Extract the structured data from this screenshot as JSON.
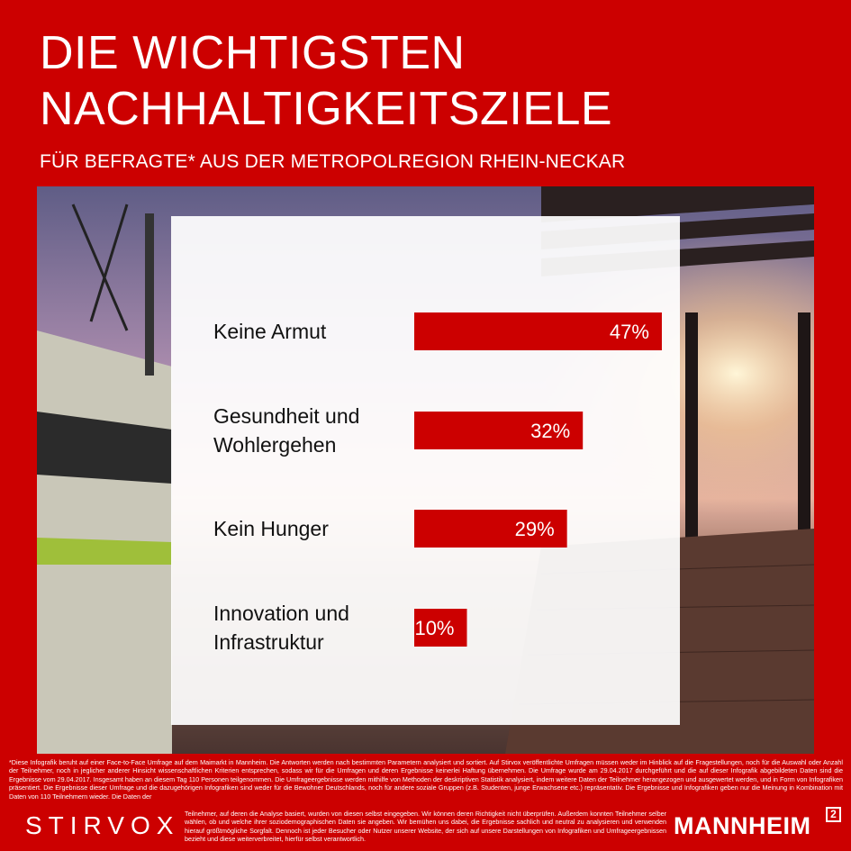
{
  "header": {
    "title_line1": "DIE WICHTIGSTEN",
    "title_line2": "NACHHALTIGKEITSZIELE",
    "subtitle": "FÜR BEFRAGTE* AUS DER METROPOLREGION RHEIN-NECKAR"
  },
  "colors": {
    "background": "#cc0000",
    "bar": "#cc0000",
    "panel": "#ffffff"
  },
  "chart_data": {
    "type": "bar",
    "orientation": "horizontal",
    "categories": [
      [
        "Keine Armut"
      ],
      [
        "Gesundheit und",
        "Wohlergehen"
      ],
      [
        "Kein Hunger"
      ],
      [
        "Innovation und",
        "Infrastruktur"
      ]
    ],
    "values": [
      47,
      32,
      29,
      10
    ],
    "value_labels": [
      "47%",
      "32%",
      "29%",
      "10%"
    ],
    "unit": "%"
  },
  "footnote": {
    "text": "*Diese Infografik beruht auf einer Face-to-Face Umfrage auf dem Maimarkt in Mannheim. Die Antworten werden nach bestimmten Parametern analysiert und sortiert. Auf Stirvox veröffentlichte Umfragen müssen weder im Hinblick auf die Fragestellungen, noch für die Auswahl oder Anzahl der Teilnehmer, noch in jeglicher anderer Hinsicht wissenschaftlichen Kriterien entsprechen, sodass wir für die Umfragen und deren Ergebnisse keinerlei Haftung übernehmen. Die Umfrage wurde am 29.04.2017 durchgeführt und die auf dieser Infografik abgebildeten Daten sind die Ergebnisse vom 29.04.2017. Insgesamt haben an diesem Tag 110 Personen teilgenommen. Die Umfrageergebnisse werden mithilfe von Methoden der deskriptiven Statistik analysiert, indem weitere Daten der Teilnehmer herangezogen und ausgewertet werden, und in Form von Infografiken präsentiert. Die Ergebnisse dieser Umfrage und die dazugehörigen Infografiken sind weder für die Bewohner Deutschlands, noch für andere soziale Gruppen (z.B. Studenten, junge Erwachsene etc.) repräsentativ. Die Ergebnisse und Infografiken geben nur die Meinung in Kombination mit Daten von 110 Teilnehmern wieder. Die Daten der",
    "text_tail": "Teilnehmer, auf deren die Analyse basiert, wurden von diesen selbst eingegeben. Wir können deren Richtigkeit nicht überprüfen. Außerdem konnten Teilnehmer selber wählen, ob und welche ihrer soziodemographischen Daten sie angeben. Wir bemühen uns dabei, die Ergebnisse sachlich und neutral zu analysieren und verwenden hierauf größtmögliche Sorgfalt. Dennoch ist jeder Besucher oder Nutzer unserer Website, der sich auf unsere Darstellungen von Infografiken und Umfrageergebnissen bezieht und diese weiterverbreitet, hierfür selbst verantwortlich."
  },
  "logos": {
    "left": "STIRVOX",
    "right": "MANNHEIM",
    "right_superscript": "2"
  }
}
